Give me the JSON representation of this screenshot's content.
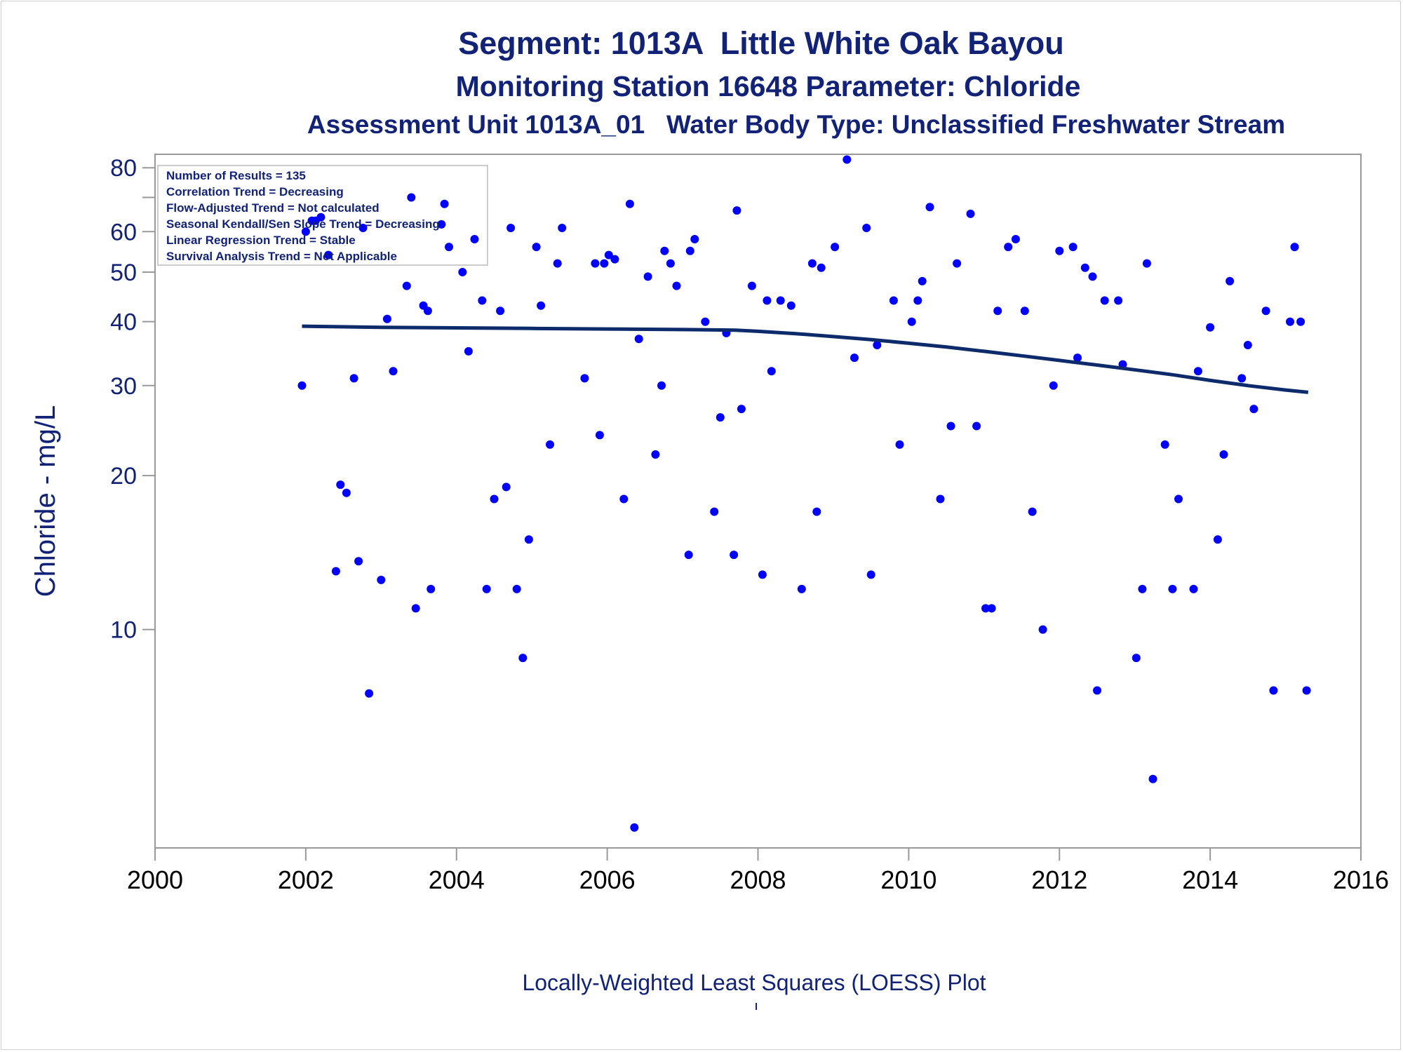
{
  "titles": {
    "line1": "Segment: 1013A  Little White Oak Bayou",
    "line2": "Monitoring Station 16648 Parameter: Chloride",
    "line3": "Assessment Unit 1013A_01   Water Body Type: Unclassified Freshwater Stream"
  },
  "footnote": "Locally-Weighted Least Squares (LOESS) Plot",
  "colors": {
    "text": "#112277",
    "points": "#0000ff",
    "trend": "#0d2a6b",
    "axis": "#999999"
  },
  "legend_box": [
    "Number of Results = 135",
    "Correlation Trend = Decreasing",
    "Flow-Adjusted Trend = Not calculated",
    "Seasonal Kendall/Sen Slope Trend = Decreasing",
    "Linear Regression Trend = Stable",
    "Survival Analysis Trend = Not Applicable"
  ],
  "chart_data": {
    "type": "scatter",
    "title": "Segment: 1013A  Little White Oak Bayou",
    "xlabel": "",
    "ylabel": "Chloride - mg/L",
    "yscale": "log",
    "xlim": [
      2000,
      2016
    ],
    "ylim": [
      3.74,
      85
    ],
    "xticks": [
      2000,
      2002,
      2004,
      2006,
      2008,
      2010,
      2012,
      2014,
      2016
    ],
    "yticks": [
      10,
      20,
      30,
      40,
      50,
      60,
      80
    ],
    "grid": false,
    "points": [
      [
        2001.95,
        30
      ],
      [
        2002.0,
        60
      ],
      [
        2002.08,
        63
      ],
      [
        2002.13,
        63
      ],
      [
        2002.2,
        64
      ],
      [
        2002.3,
        54
      ],
      [
        2002.4,
        13
      ],
      [
        2002.46,
        19.2
      ],
      [
        2002.54,
        18.5
      ],
      [
        2002.64,
        31
      ],
      [
        2002.7,
        13.6
      ],
      [
        2002.76,
        61
      ],
      [
        2002.84,
        7.5
      ],
      [
        2003.0,
        12.5
      ],
      [
        2003.08,
        40.5
      ],
      [
        2003.16,
        32
      ],
      [
        2003.34,
        47
      ],
      [
        2003.4,
        70
      ],
      [
        2003.46,
        11
      ],
      [
        2003.56,
        43
      ],
      [
        2003.62,
        42
      ],
      [
        2003.66,
        12
      ],
      [
        2003.8,
        62
      ],
      [
        2003.84,
        68
      ],
      [
        2003.9,
        56
      ],
      [
        2004.08,
        50
      ],
      [
        2004.16,
        35
      ],
      [
        2004.24,
        58
      ],
      [
        2004.34,
        44
      ],
      [
        2004.4,
        12
      ],
      [
        2004.5,
        18
      ],
      [
        2004.58,
        42
      ],
      [
        2004.66,
        19
      ],
      [
        2004.72,
        61
      ],
      [
        2004.8,
        12
      ],
      [
        2004.88,
        8.8
      ],
      [
        2004.96,
        15
      ],
      [
        2005.06,
        56
      ],
      [
        2005.12,
        43
      ],
      [
        2005.24,
        23
      ],
      [
        2005.34,
        52
      ],
      [
        2005.4,
        61
      ],
      [
        2005.7,
        31
      ],
      [
        2005.84,
        52
      ],
      [
        2005.9,
        24
      ],
      [
        2005.96,
        52
      ],
      [
        2006.02,
        54
      ],
      [
        2006.1,
        53
      ],
      [
        2006.22,
        18
      ],
      [
        2006.3,
        68
      ],
      [
        2006.36,
        4.1
      ],
      [
        2006.42,
        37
      ],
      [
        2006.54,
        49
      ],
      [
        2006.64,
        22
      ],
      [
        2006.72,
        30
      ],
      [
        2006.76,
        55
      ],
      [
        2006.84,
        52
      ],
      [
        2006.92,
        47
      ],
      [
        2007.08,
        14
      ],
      [
        2007.1,
        55
      ],
      [
        2007.16,
        58
      ],
      [
        2007.3,
        40
      ],
      [
        2007.42,
        17
      ],
      [
        2007.5,
        26
      ],
      [
        2007.58,
        38
      ],
      [
        2007.68,
        14
      ],
      [
        2007.72,
        66
      ],
      [
        2007.78,
        27
      ],
      [
        2007.92,
        47
      ],
      [
        2008.06,
        12.8
      ],
      [
        2008.12,
        44
      ],
      [
        2008.18,
        32
      ],
      [
        2008.3,
        44
      ],
      [
        2008.44,
        43
      ],
      [
        2008.58,
        12
      ],
      [
        2008.72,
        52
      ],
      [
        2008.78,
        17
      ],
      [
        2008.84,
        51
      ],
      [
        2009.02,
        56
      ],
      [
        2009.18,
        83
      ],
      [
        2009.28,
        34
      ],
      [
        2009.44,
        61
      ],
      [
        2009.5,
        12.8
      ],
      [
        2009.58,
        36
      ],
      [
        2009.8,
        44
      ],
      [
        2009.88,
        23
      ],
      [
        2010.04,
        40
      ],
      [
        2010.12,
        44
      ],
      [
        2010.18,
        48
      ],
      [
        2010.28,
        67
      ],
      [
        2010.42,
        18
      ],
      [
        2010.56,
        25
      ],
      [
        2010.64,
        52
      ],
      [
        2010.82,
        65
      ],
      [
        2010.9,
        25
      ],
      [
        2011.02,
        11
      ],
      [
        2011.1,
        11
      ],
      [
        2011.18,
        42
      ],
      [
        2011.32,
        56
      ],
      [
        2011.42,
        58
      ],
      [
        2011.54,
        42
      ],
      [
        2011.64,
        17
      ],
      [
        2011.78,
        10
      ],
      [
        2011.92,
        30
      ],
      [
        2012.0,
        55
      ],
      [
        2012.18,
        56
      ],
      [
        2012.24,
        34
      ],
      [
        2012.34,
        51
      ],
      [
        2012.44,
        49
      ],
      [
        2012.5,
        7.6
      ],
      [
        2012.6,
        44
      ],
      [
        2012.78,
        44
      ],
      [
        2012.84,
        33
      ],
      [
        2013.02,
        8.8
      ],
      [
        2013.1,
        12
      ],
      [
        2013.16,
        52
      ],
      [
        2013.24,
        5.1
      ],
      [
        2013.4,
        23
      ],
      [
        2013.5,
        12
      ],
      [
        2013.58,
        18
      ],
      [
        2013.78,
        12
      ],
      [
        2013.84,
        32
      ],
      [
        2014.0,
        39
      ],
      [
        2014.1,
        15
      ],
      [
        2014.18,
        22
      ],
      [
        2014.26,
        48
      ],
      [
        2014.42,
        31
      ],
      [
        2014.5,
        36
      ],
      [
        2014.58,
        27
      ],
      [
        2014.74,
        42
      ],
      [
        2014.84,
        7.6
      ],
      [
        2015.06,
        40
      ],
      [
        2015.12,
        56
      ],
      [
        2015.2,
        40
      ],
      [
        2015.28,
        7.6
      ]
    ],
    "loess": {
      "x": [
        2001.95,
        2003.0,
        2004.0,
        2005.0,
        2006.0,
        2007.0,
        2007.7,
        2008.0,
        2008.5,
        2009.0,
        2009.5,
        2010.0,
        2010.5,
        2011.0,
        2011.5,
        2012.0,
        2012.5,
        2013.0,
        2013.5,
        2014.0,
        2014.5,
        2015.0,
        2015.3
      ],
      "y": [
        39.2,
        39.0,
        38.9,
        38.8,
        38.7,
        38.6,
        38.5,
        38.3,
        37.9,
        37.4,
        36.9,
        36.3,
        35.7,
        35.0,
        34.3,
        33.6,
        32.9,
        32.2,
        31.5,
        30.7,
        30.0,
        29.4,
        29.1
      ]
    }
  }
}
